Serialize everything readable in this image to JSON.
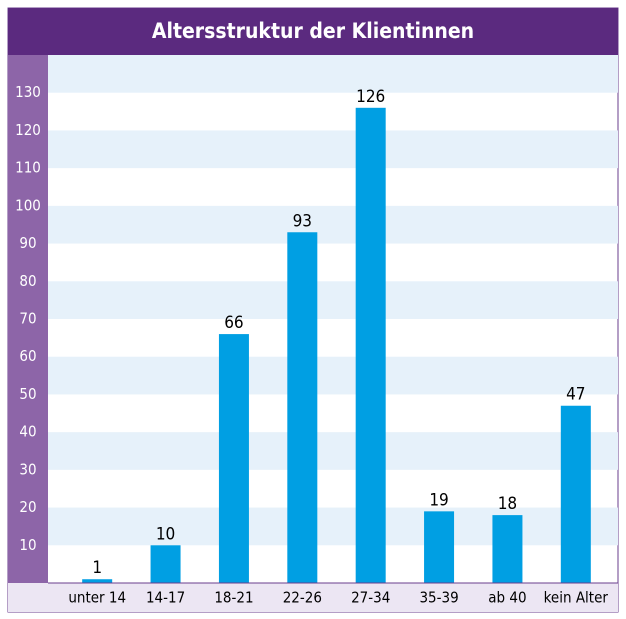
{
  "chart_data": {
    "type": "bar",
    "title": "Altersstruktur der Klientinnen",
    "categories": [
      "unter 14",
      "14-17",
      "18-21",
      "22-26",
      "27-34",
      "35-39",
      "ab 40",
      "kein Alter"
    ],
    "values": [
      1,
      10,
      66,
      93,
      126,
      19,
      18,
      47
    ],
    "color": "#009fe3",
    "ylim": [
      0,
      140
    ],
    "yticks": [
      10,
      20,
      30,
      40,
      50,
      60,
      70,
      80,
      90,
      100,
      110,
      120,
      130
    ],
    "grid": true
  }
}
